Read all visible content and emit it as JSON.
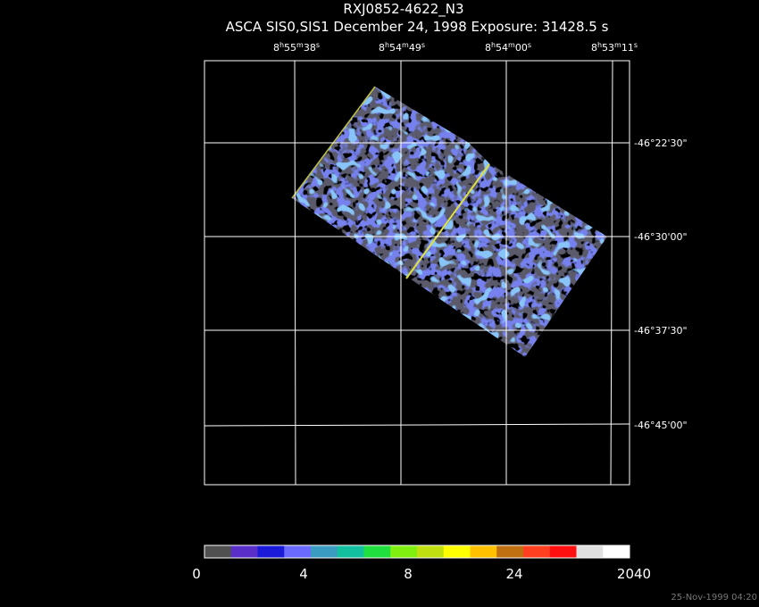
{
  "header": {
    "title": "RXJ0852-4622_N3",
    "subtitle": "ASCA SIS0,SIS1 December 24, 1998 Exposure: 31428.5 s"
  },
  "ra_labels": [
    [
      "8",
      "h",
      "55",
      "m",
      "38",
      "s"
    ],
    [
      "8",
      "h",
      "54",
      "m",
      "49",
      "s"
    ],
    [
      "8",
      "h",
      "54",
      "m",
      "00",
      "s"
    ],
    [
      "8",
      "h",
      "53",
      "m",
      "11",
      "s"
    ]
  ],
  "dec_labels": [
    "-46°22'30\"",
    "-46°30'00\"",
    "-46°37'30\"",
    "-46°45'00\""
  ],
  "colorbar_labels": [
    "0",
    "4",
    "8",
    "24",
    "2040"
  ],
  "timestamp": "25-Nov-1999 04:20"
}
